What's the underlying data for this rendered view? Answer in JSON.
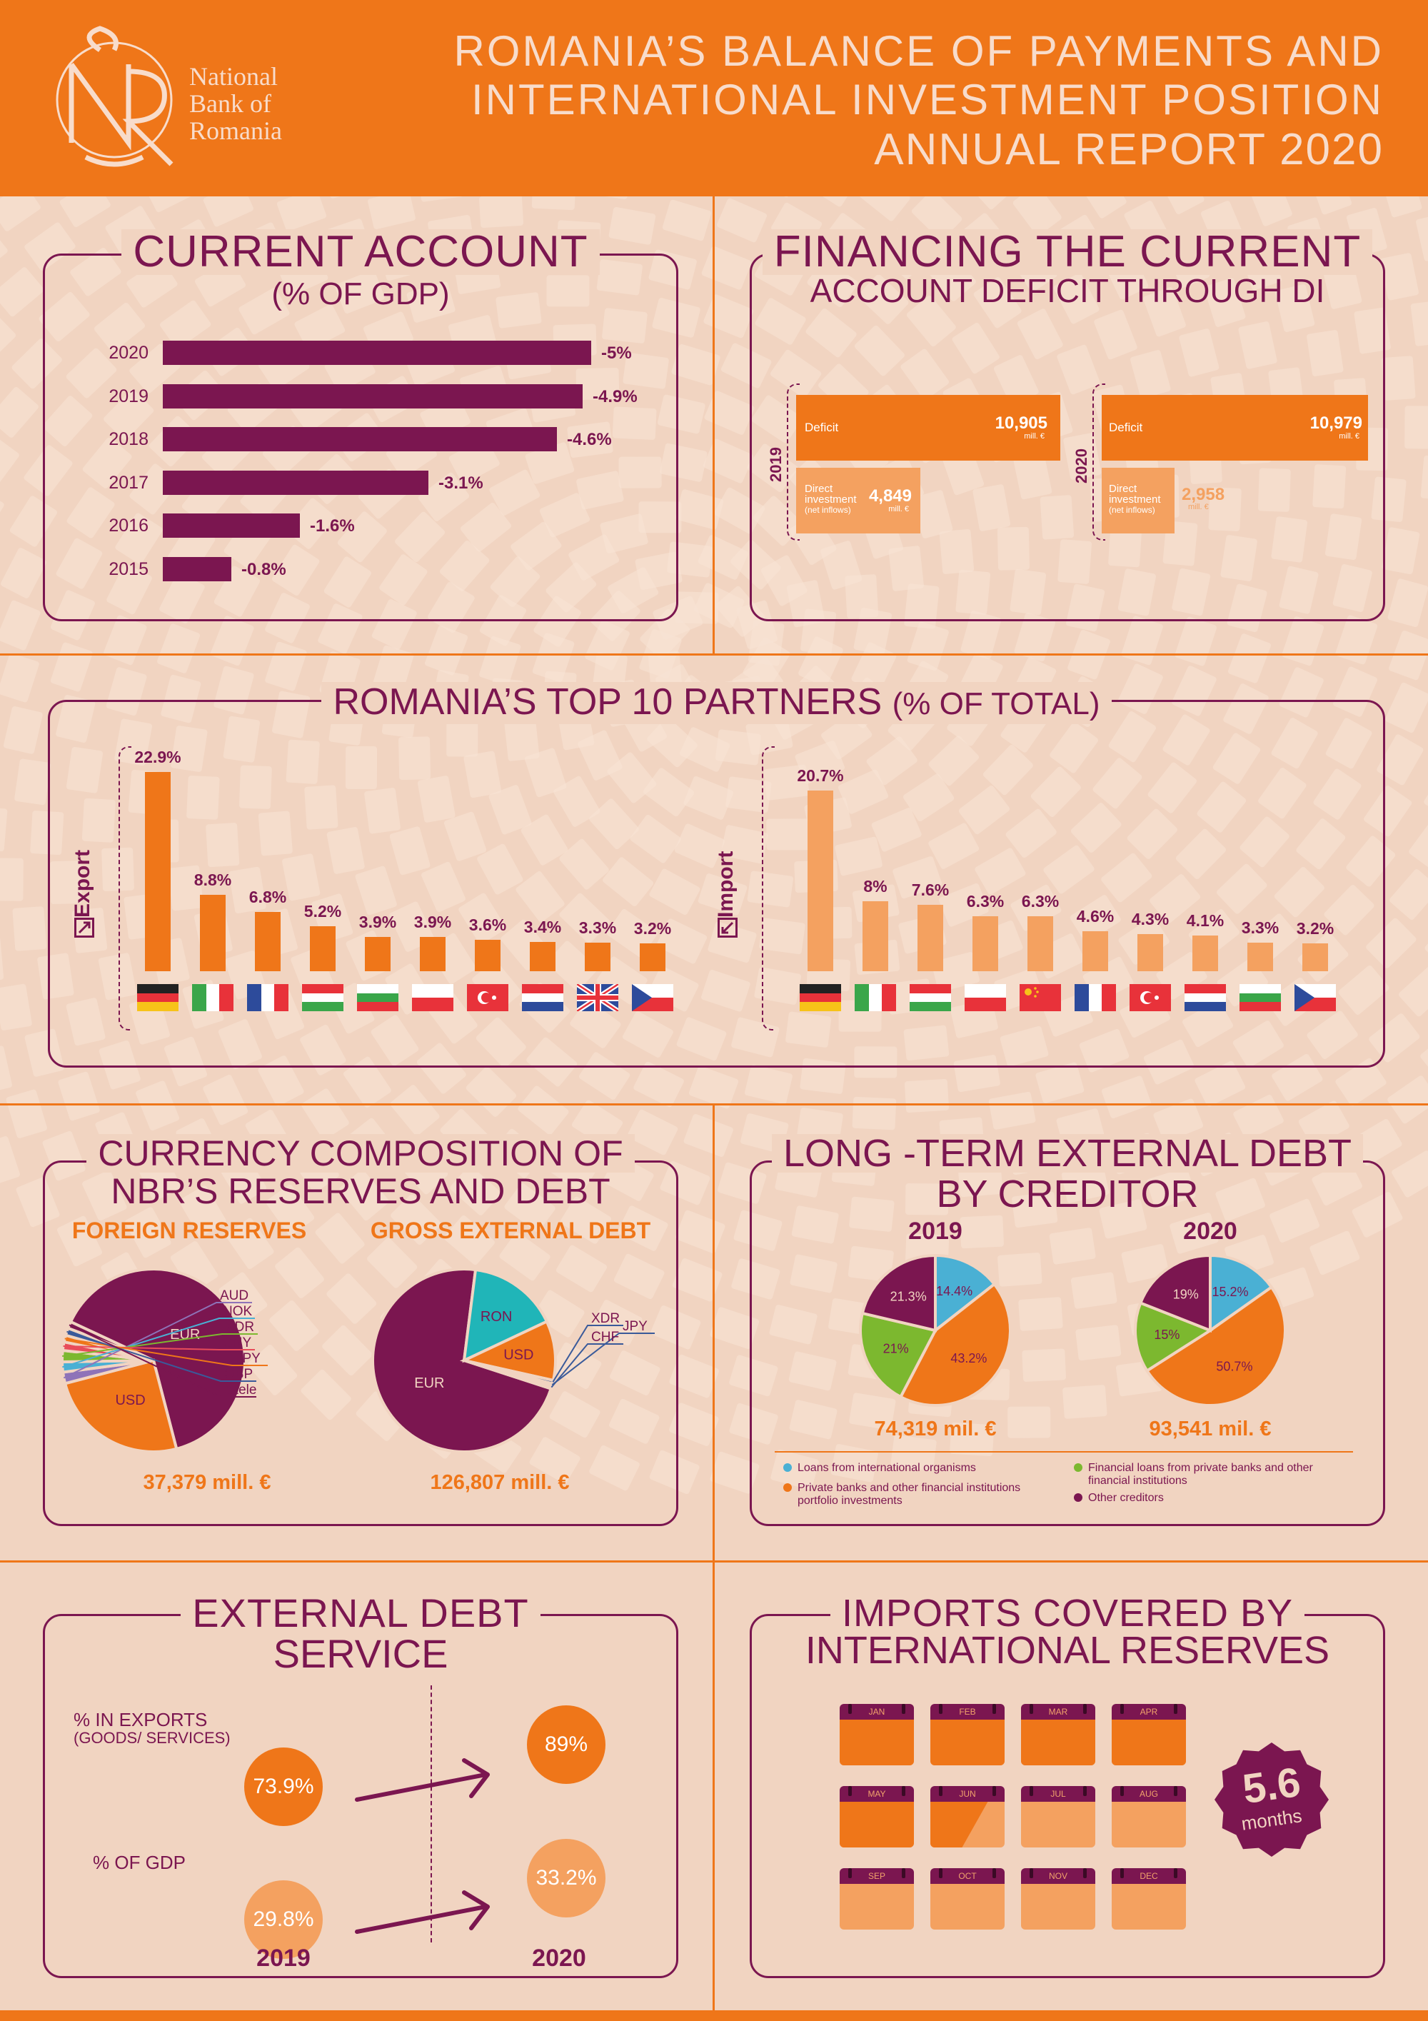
{
  "header": {
    "logo_lines": [
      "National",
      "Bank of",
      "Romania"
    ],
    "title_line1": "ROMANIA’S BALANCE OF PAYMENTS AND",
    "title_line2": "INTERNATIONAL INVESTMENT POSITION",
    "title_line3": "ANNUAL REPORT 2020"
  },
  "colors": {
    "orange": "#ef7619",
    "light_orange": "#f4a160",
    "plum": "#7b1650",
    "background": "#f1d4c1",
    "teal": "#20b5b8",
    "green": "#7cb82f",
    "blue": "#4ab0d4"
  },
  "current_account": {
    "title": "CURRENT ACCOUNT",
    "subtitle": "(% OF GDP)"
  },
  "financing": {
    "title_line1": "FINANCING THE CURRENT",
    "title_line2": "ACCOUNT DEFICIT THROUGH DI",
    "deficit_label": "Deficit",
    "di_label_line1": "Direct",
    "di_label_line2": "investment",
    "di_label_line3": "(net inflows)",
    "unit": "mill. €",
    "y2019": "2019",
    "y2020": "2020",
    "deficit_2019": "10,905",
    "di_2019": "4,849",
    "deficit_2020": "10,979",
    "di_2020": "2,958"
  },
  "partners": {
    "title": "ROMANIA’S TOP 10 PARTNERS",
    "title_suffix": "(% OF TOTAL)",
    "export_label": "Export",
    "import_label": "Import"
  },
  "currency": {
    "title_line1": "CURRENCY COMPOSITION OF",
    "title_line2": "NBR’S RESERVES AND DEBT",
    "reserves_head": "FOREIGN RESERVES",
    "debt_head": "GROSS EXTERNAL DEBT",
    "reserves_total": "37,379 mill. €",
    "debt_total": "126,807 mill. €"
  },
  "creditor": {
    "title_line1": "LONG -TERM EXTERNAL DEBT",
    "title_line2": "BY CREDITOR",
    "y2019": "2019",
    "y2020": "2020",
    "total_2019": "74,319 mil. €",
    "total_2020": "93,541 mil. €",
    "legend": [
      {
        "label": "Loans from international organisms",
        "color": "#4ab0d4"
      },
      {
        "label": "Financial loans from private banks and other financial institutions",
        "color": "#7cb82f"
      },
      {
        "label": "Private banks and other financial institutions portfolio investments",
        "color": "#ef7619"
      },
      {
        "label": "Other creditors",
        "color": "#7b1650"
      }
    ]
  },
  "debt_service": {
    "title_line1": "EXTERNAL DEBT",
    "title_line2": "SERVICE",
    "exports_label": "% IN EXPORTS",
    "exports_sub": "(GOODS/ SERVICES)",
    "gdp_label": "% OF GDP",
    "exp_2019": "73.9%",
    "exp_2020": "89%",
    "gdp_2019": "29.8%",
    "gdp_2020": "33.2%",
    "y2019": "2019",
    "y2020": "2020"
  },
  "imports_cover": {
    "title_line1": "IMPORTS COVERED BY",
    "title_line2": "INTERNATIONAL RESERVES",
    "months": [
      "JAN",
      "FEB",
      "MAR",
      "APR",
      "MAY",
      "JUN",
      "JUL",
      "AUG",
      "SEP",
      "OCT",
      "NOV",
      "DEC"
    ],
    "value": "5.6",
    "value_fraction": 0.4667,
    "unit": "months"
  },
  "chart_data": [
    {
      "type": "bar",
      "title": "CURRENT ACCOUNT",
      "subtitle": "(% OF GDP)",
      "categories": [
        "2020",
        "2019",
        "2018",
        "2017",
        "2016",
        "2015"
      ],
      "values": [
        -5,
        -4.9,
        -4.6,
        -3.1,
        -1.6,
        -0.8
      ],
      "labels": [
        "-5%",
        "-4.9%",
        "-4.6%",
        "-3.1%",
        "-1.6%",
        "-0.8%"
      ]
    },
    {
      "type": "bar",
      "title": "FINANCING THE CURRENT ACCOUNT DEFICIT THROUGH DI",
      "categories": [
        "2019",
        "2020"
      ],
      "series": [
        {
          "name": "Deficit",
          "values": [
            10905,
            10979
          ]
        },
        {
          "name": "Direct investment (net inflows)",
          "values": [
            4849,
            2958
          ]
        }
      ],
      "unit": "mill. €"
    },
    {
      "type": "bar",
      "title": "ROMANIA’S TOP 10 PARTNERS (% OF TOTAL)",
      "series_name": "Export",
      "categories": [
        "Germany",
        "Italy",
        "France",
        "Hungary",
        "Bulgaria",
        "Poland",
        "Turkey",
        "Netherlands",
        "United Kingdom",
        "Czech Republic"
      ],
      "values": [
        22.9,
        8.8,
        6.8,
        5.2,
        3.9,
        3.9,
        3.6,
        3.4,
        3.3,
        3.2
      ],
      "labels": [
        "22.9%",
        "8.8%",
        "6.8%",
        "5.2%",
        "3.9%",
        "3.9%",
        "3.6%",
        "3.4%",
        "3.3%",
        "3.2%"
      ],
      "flags": [
        "de",
        "it",
        "fr",
        "hu",
        "bg",
        "pl",
        "tr",
        "nl",
        "gb",
        "cz"
      ]
    },
    {
      "type": "bar",
      "title": "ROMANIA’S TOP 10 PARTNERS (% OF TOTAL)",
      "series_name": "Import",
      "categories": [
        "Germany",
        "Italy",
        "Hungary",
        "Poland",
        "China",
        "France",
        "Turkey",
        "Netherlands",
        "Bulgaria",
        "Czech Republic"
      ],
      "values": [
        20.7,
        8,
        7.6,
        6.3,
        6.3,
        4.6,
        4.3,
        4.1,
        3.3,
        3.2
      ],
      "labels": [
        "20.7%",
        "8%",
        "7.6%",
        "6.3%",
        "6.3%",
        "4.6%",
        "4.3%",
        "4.1%",
        "3.3%",
        "3.2%"
      ],
      "flags": [
        "de",
        "it",
        "hu",
        "pl",
        "cn",
        "fr",
        "tr",
        "nl",
        "bg",
        "cz"
      ]
    },
    {
      "type": "pie",
      "title": "FOREIGN RESERVES",
      "total": "37,379 mill. €",
      "slices": [
        {
          "label": "EUR",
          "value": 64,
          "color": "#7b1650"
        },
        {
          "label": "USD",
          "value": 25,
          "color": "#ef7619"
        },
        {
          "label": "AUD",
          "value": 2,
          "color": "#8e73b8"
        },
        {
          "label": "NOK",
          "value": 1.8,
          "color": "#4ab0d4"
        },
        {
          "label": "XDR",
          "value": 2,
          "color": "#7cb82f"
        },
        {
          "label": "CNY",
          "value": 1.5,
          "color": "#e84c5a"
        },
        {
          "label": "JPY",
          "value": 1.2,
          "color": "#ef7619"
        },
        {
          "label": "GBP",
          "value": 1.3,
          "color": "#3a5a9a"
        },
        {
          "label": "altele",
          "value": 1.2,
          "color": "#7b1650"
        }
      ]
    },
    {
      "type": "pie",
      "title": "GROSS EXTERNAL DEBT",
      "total": "126,807 mill. €",
      "slices": [
        {
          "label": "EUR",
          "value": 72,
          "color": "#7b1650"
        },
        {
          "label": "RON",
          "value": 16,
          "color": "#20b5b8"
        },
        {
          "label": "USD",
          "value": 10.5,
          "color": "#ef7619"
        },
        {
          "label": "XDR",
          "value": 0.6,
          "color": "#3a5a9a"
        },
        {
          "label": "JPY",
          "value": 0.4,
          "color": "#4ab0d4"
        },
        {
          "label": "CHF",
          "value": 0.5,
          "color": "#7b1650"
        }
      ]
    },
    {
      "type": "pie",
      "title": "LONG -TERM EXTERNAL DEBT BY CREDITOR 2019",
      "total": "74,319 mil. €",
      "slices": [
        {
          "label": "14.4%",
          "value": 14.4,
          "color": "#4ab0d4"
        },
        {
          "label": "43.2%",
          "value": 43.2,
          "color": "#ef7619"
        },
        {
          "label": "21%",
          "value": 21,
          "color": "#7cb82f"
        },
        {
          "label": "21.3%",
          "value": 21.3,
          "color": "#7b1650"
        }
      ]
    },
    {
      "type": "pie",
      "title": "LONG -TERM EXTERNAL DEBT BY CREDITOR 2020",
      "total": "93,541 mil. €",
      "slices": [
        {
          "label": "15.2%",
          "value": 15.2,
          "color": "#4ab0d4"
        },
        {
          "label": "50.7%",
          "value": 50.7,
          "color": "#ef7619"
        },
        {
          "label": "15%",
          "value": 15,
          "color": "#7cb82f"
        },
        {
          "label": "19%",
          "value": 19,
          "color": "#7b1650"
        }
      ]
    }
  ]
}
